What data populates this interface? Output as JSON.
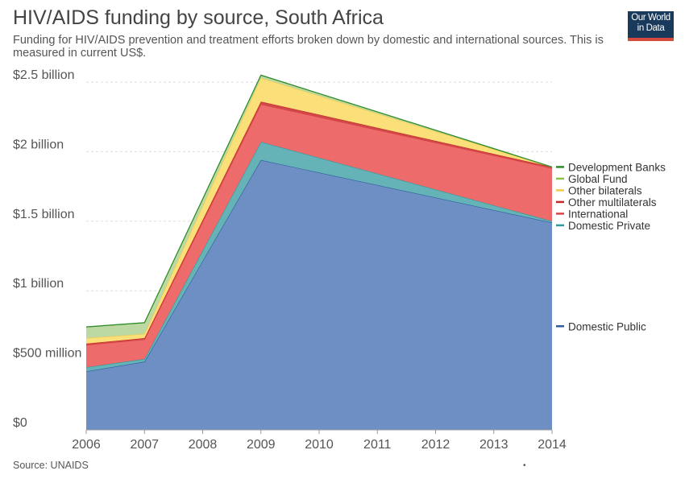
{
  "header": {
    "title": "HIV/AIDS funding by source, South Africa",
    "subtitle": "Funding for HIV/AIDS prevention and treatment efforts broken down by domestic and international sources. This is measured in current US$."
  },
  "logo": {
    "line1": "Our World",
    "line2": "in Data"
  },
  "footer": {
    "source": "Source: UNAIDS",
    "dot": "•"
  },
  "chart_data": {
    "type": "area",
    "stacked": true,
    "x": [
      2006,
      2007,
      2009,
      2014
    ],
    "xticks": [
      2006,
      2007,
      2008,
      2009,
      2010,
      2011,
      2012,
      2013,
      2014
    ],
    "ylim": [
      0,
      2500000000
    ],
    "yticks": [
      {
        "value": 0,
        "label": "$0"
      },
      {
        "value": 500000000,
        "label": "$500 million"
      },
      {
        "value": 1000000000,
        "label": "$1 billion"
      },
      {
        "value": 1500000000,
        "label": "$1.5 billion"
      },
      {
        "value": 2000000000,
        "label": "$2 billion"
      },
      {
        "value": 2500000000,
        "label": "$2.5 billion"
      }
    ],
    "grid": true,
    "legend": "right",
    "series": [
      {
        "name": "Domestic Public",
        "color": "#6d8fc4",
        "line": "#2f5c9e",
        "values": [
          420000000,
          490000000,
          1940000000,
          1490000000
        ]
      },
      {
        "name": "Domestic Private",
        "color": "#66b3b7",
        "line": "#2e9a9e",
        "values": [
          30000000,
          20000000,
          130000000,
          10000000
        ]
      },
      {
        "name": "International",
        "color": "#ed6b6b",
        "line": "#d94545",
        "values": [
          160000000,
          140000000,
          270000000,
          380000000
        ]
      },
      {
        "name": "Other multilaterals",
        "color": "#d14848",
        "line": "#c62828",
        "values": [
          10000000,
          10000000,
          20000000,
          10000000
        ]
      },
      {
        "name": "Other bilaterals",
        "color": "#fbe07a",
        "line": "#f2c94c",
        "values": [
          40000000,
          30000000,
          170000000,
          0
        ]
      },
      {
        "name": "Global Fund",
        "color": "#bcd9a3",
        "line": "#8bc34a",
        "values": [
          80000000,
          80000000,
          20000000,
          0
        ]
      },
      {
        "name": "Development Banks",
        "color": "#4a9a4a",
        "line": "#2e8b2e",
        "values": [
          0,
          0,
          0,
          0
        ]
      }
    ],
    "legend_order": [
      "Development Banks",
      "Global Fund",
      "Other bilaterals",
      "Other multilaterals",
      "International",
      "Domestic Private",
      "Domestic Public"
    ]
  }
}
